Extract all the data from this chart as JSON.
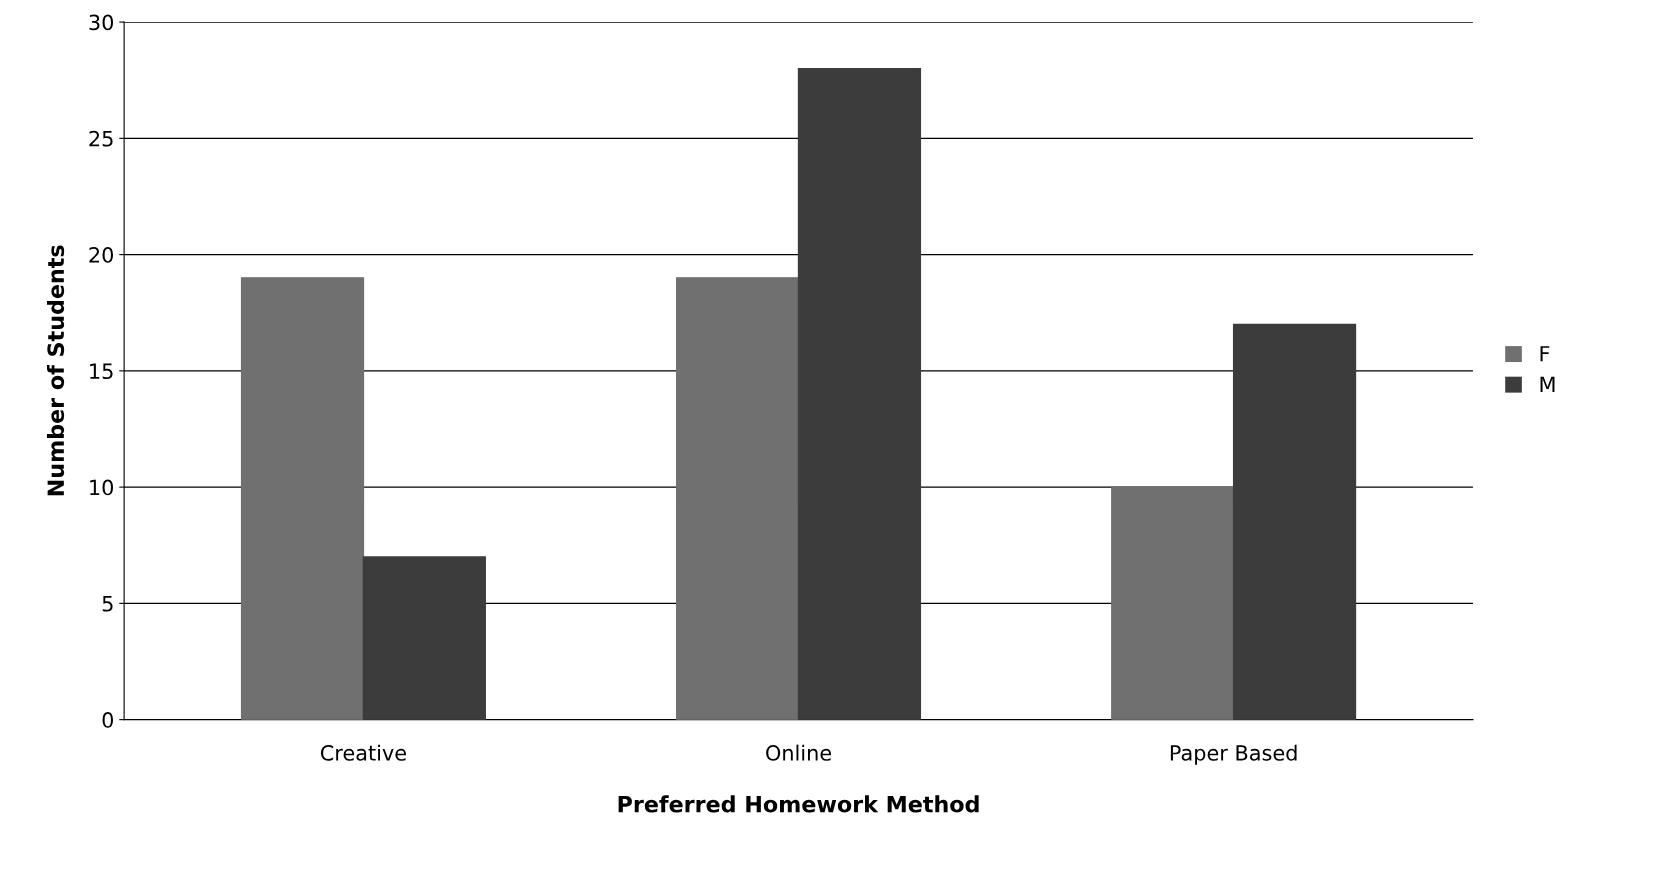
{
  "chart_data": {
    "type": "bar",
    "xlabel": "Preferred Homework Method",
    "ylabel": "Number of Students",
    "categories": [
      "Creative",
      "Online",
      "Paper Based"
    ],
    "series": [
      {
        "name": "F",
        "color": "#707070",
        "values": [
          19,
          19,
          10
        ]
      },
      {
        "name": "M",
        "color": "#3c3c3c",
        "values": [
          7,
          28,
          17
        ]
      }
    ],
    "ylim": [
      0,
      30
    ],
    "yticks": [
      0,
      5,
      10,
      15,
      20,
      25,
      30
    ],
    "grid": "y",
    "legend": "right"
  }
}
